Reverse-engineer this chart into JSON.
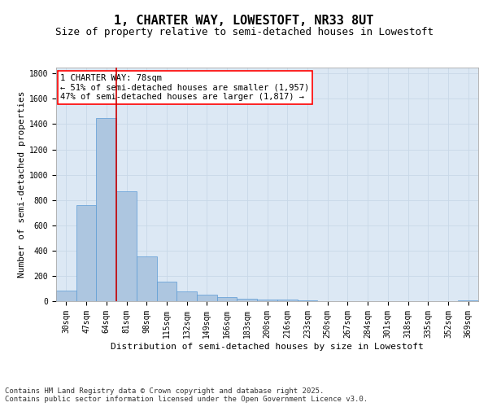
{
  "title1": "1, CHARTER WAY, LOWESTOFT, NR33 8UT",
  "title2": "Size of property relative to semi-detached houses in Lowestoft",
  "xlabel": "Distribution of semi-detached houses by size in Lowestoft",
  "ylabel": "Number of semi-detached properties",
  "categories": [
    "30sqm",
    "47sqm",
    "64sqm",
    "81sqm",
    "98sqm",
    "115sqm",
    "132sqm",
    "149sqm",
    "166sqm",
    "183sqm",
    "200sqm",
    "216sqm",
    "233sqm",
    "250sqm",
    "267sqm",
    "284sqm",
    "301sqm",
    "318sqm",
    "335sqm",
    "352sqm",
    "369sqm"
  ],
  "values": [
    85,
    757,
    1449,
    868,
    355,
    153,
    75,
    50,
    33,
    20,
    14,
    10,
    5,
    3,
    2,
    1,
    0,
    0,
    0,
    0,
    8
  ],
  "bar_color": "#adc6e0",
  "bar_edge_color": "#5b9bd5",
  "grid_color": "#c8d8e8",
  "background_color": "#dce8f4",
  "vline_color": "#cc0000",
  "ylim": [
    0,
    1850
  ],
  "yticks": [
    0,
    200,
    400,
    600,
    800,
    1000,
    1200,
    1400,
    1600,
    1800
  ],
  "annotation_text": "1 CHARTER WAY: 78sqm\n← 51% of semi-detached houses are smaller (1,957)\n47% of semi-detached houses are larger (1,817) →",
  "footnote": "Contains HM Land Registry data © Crown copyright and database right 2025.\nContains public sector information licensed under the Open Government Licence v3.0.",
  "title1_fontsize": 11,
  "title2_fontsize": 9,
  "axis_label_fontsize": 8,
  "tick_fontsize": 7,
  "annot_fontsize": 7.5,
  "footnote_fontsize": 6.5
}
